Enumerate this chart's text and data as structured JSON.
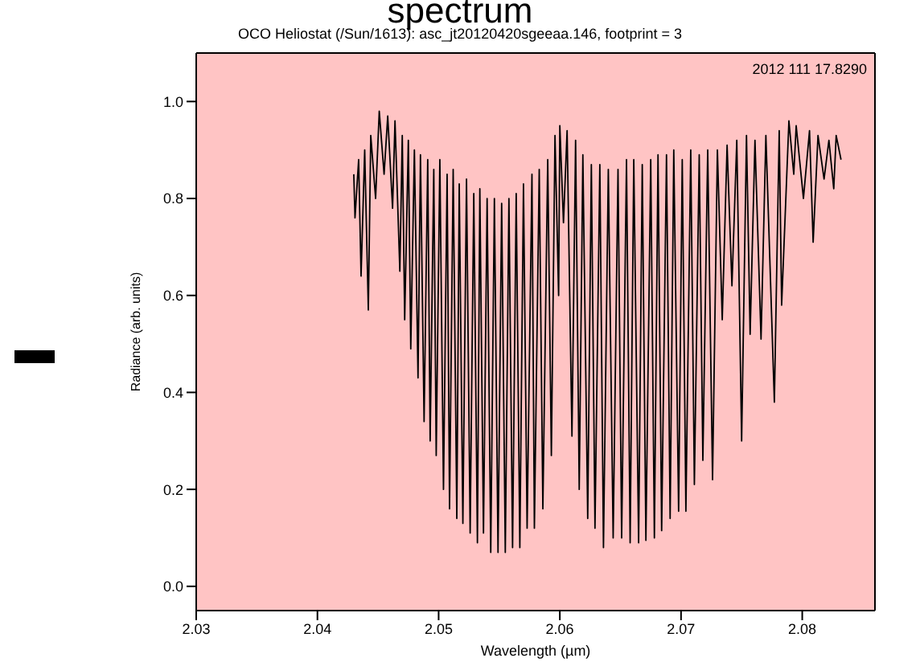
{
  "chart_data": {
    "type": "line",
    "title": "spectrum",
    "subtitle": "OCO Heliostat (/Sun/1613): asc_jt20120420sgeeaa.146, footprint = 3",
    "xlabel": "Wavelength (µm)",
    "ylabel": "Radiance (arb. units)",
    "annotations": [
      "2012 111 17.8290"
    ],
    "xlim": [
      2.03,
      2.086
    ],
    "ylim": [
      -0.05,
      1.1
    ],
    "xticks": [
      2.03,
      2.04,
      2.05,
      2.06,
      2.07,
      2.08
    ],
    "yticks": [
      {
        "value": 0,
        "label": "0.0"
      },
      0.2,
      0.4,
      0.6,
      0.8,
      {
        "value": 1,
        "label": "1.0"
      }
    ],
    "grid": false,
    "marker": "none",
    "line_style": "solid",
    "x": [
      2.043,
      2.0431,
      2.0434,
      2.0436,
      2.0439,
      2.0442,
      2.0444,
      2.0448,
      2.0451,
      2.0455,
      2.0458,
      2.0462,
      2.0464,
      2.0468,
      2.047,
      2.0472,
      2.0475,
      2.0477,
      2.048,
      2.0483,
      2.0485,
      2.0488,
      2.0491,
      2.0493,
      2.0496,
      2.0498,
      2.0501,
      2.0504,
      2.0507,
      2.0509,
      2.0512,
      2.0515,
      2.0517,
      2.052,
      2.0523,
      2.0526,
      2.0529,
      2.0532,
      2.0534,
      2.0537,
      2.054,
      2.0543,
      2.0546,
      2.0549,
      2.0552,
      2.0555,
      2.0558,
      2.0561,
      2.0564,
      2.0567,
      2.057,
      2.0573,
      2.0577,
      2.0579,
      2.0583,
      2.0586,
      2.059,
      2.0593,
      2.0596,
      2.0599,
      2.06,
      2.0603,
      2.0606,
      2.061,
      2.0613,
      2.0616,
      2.0619,
      2.0623,
      2.0626,
      2.0629,
      2.0633,
      2.0636,
      2.064,
      2.0644,
      2.0648,
      2.0651,
      2.0655,
      2.0658,
      2.0661,
      2.0665,
      2.0668,
      2.0671,
      2.0675,
      2.0678,
      2.0681,
      2.0684,
      2.0688,
      2.0691,
      2.0694,
      2.0698,
      2.0701,
      2.0704,
      2.0708,
      2.0711,
      2.0715,
      2.0718,
      2.0722,
      2.0726,
      2.073,
      2.0734,
      2.0738,
      2.0742,
      2.0746,
      2.075,
      2.0754,
      2.0757,
      2.0761,
      2.0766,
      2.077,
      2.0777,
      2.0781,
      2.0783,
      2.0789,
      2.0793,
      2.0795,
      2.0801,
      2.0806,
      2.0809,
      2.0813,
      2.0818,
      2.0822,
      2.0826,
      2.0828,
      2.0832
    ],
    "series": [
      {
        "color": "#000000",
        "values": [
          0.85,
          0.76,
          0.88,
          0.64,
          0.9,
          0.57,
          0.93,
          0.8,
          0.98,
          0.85,
          0.97,
          0.78,
          0.96,
          0.65,
          0.93,
          0.55,
          0.92,
          0.49,
          0.9,
          0.43,
          0.89,
          0.34,
          0.88,
          0.3,
          0.86,
          0.27,
          0.88,
          0.2,
          0.85,
          0.16,
          0.86,
          0.14,
          0.83,
          0.13,
          0.84,
          0.11,
          0.81,
          0.09,
          0.82,
          0.11,
          0.8,
          0.07,
          0.8,
          0.07,
          0.79,
          0.07,
          0.8,
          0.08,
          0.81,
          0.08,
          0.83,
          0.12,
          0.85,
          0.12,
          0.86,
          0.16,
          0.88,
          0.27,
          0.93,
          0.6,
          0.95,
          0.75,
          0.94,
          0.31,
          0.92,
          0.2,
          0.89,
          0.14,
          0.87,
          0.12,
          0.87,
          0.08,
          0.86,
          0.1,
          0.86,
          0.1,
          0.88,
          0.09,
          0.88,
          0.09,
          0.87,
          0.095,
          0.88,
          0.1,
          0.89,
          0.115,
          0.89,
          0.14,
          0.9,
          0.155,
          0.88,
          0.155,
          0.9,
          0.21,
          0.89,
          0.26,
          0.9,
          0.22,
          0.9,
          0.55,
          0.91,
          0.62,
          0.92,
          0.3,
          0.93,
          0.52,
          0.92,
          0.51,
          0.93,
          0.38,
          0.94,
          0.58,
          0.96,
          0.85,
          0.95,
          0.8,
          0.94,
          0.71,
          0.93,
          0.84,
          0.92,
          0.82,
          0.93,
          0.88
        ]
      }
    ]
  }
}
